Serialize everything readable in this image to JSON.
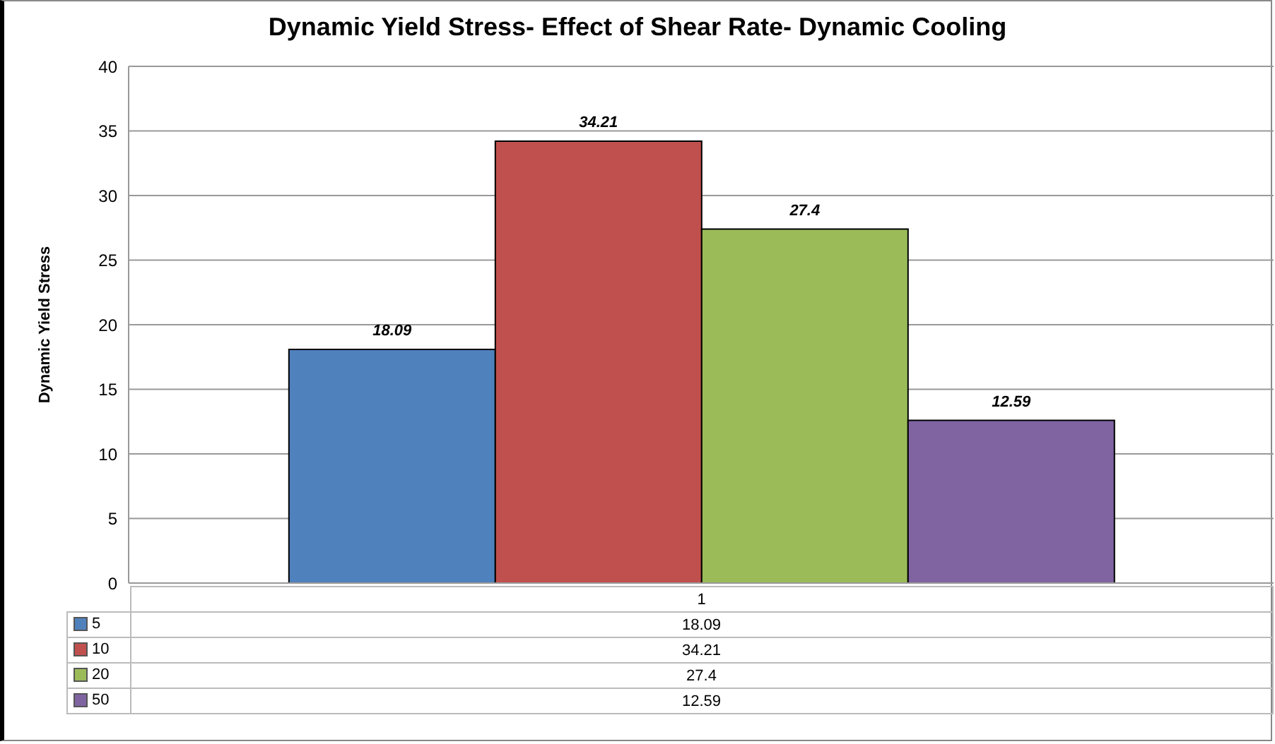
{
  "chart_data": {
    "type": "bar",
    "title": "Dynamic Yield Stress- Effect of Shear Rate- Dynamic Cooling",
    "ylabel": "Dynamic Yield Stress",
    "categories": [
      "1"
    ],
    "series": [
      {
        "name": "5",
        "color": "#4f81bd",
        "values": [
          18.09
        ]
      },
      {
        "name": "10",
        "color": "#c0504d",
        "values": [
          34.21
        ]
      },
      {
        "name": "20",
        "color": "#9bbb59",
        "values": [
          27.4
        ]
      },
      {
        "name": "50",
        "color": "#8064a2",
        "values": [
          12.59
        ]
      }
    ],
    "annotations": [
      "18.09",
      "34.21",
      "27.4",
      "12.59"
    ],
    "ylim": [
      0,
      40
    ],
    "yticks": [
      0,
      5,
      10,
      15,
      20,
      25,
      30,
      35,
      40
    ],
    "grid": "y",
    "data_labels": true,
    "legend": "bottom"
  }
}
